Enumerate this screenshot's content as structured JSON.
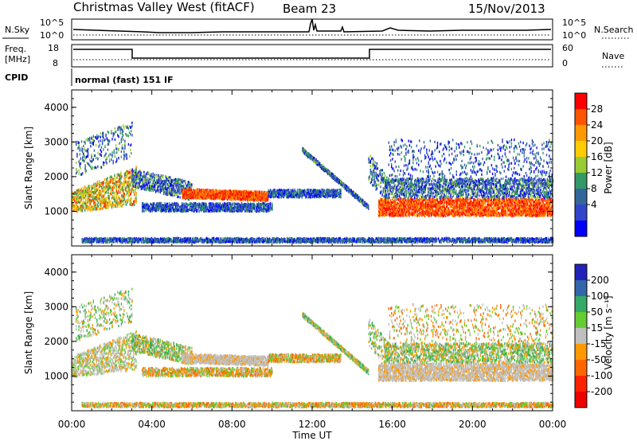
{
  "header": {
    "station": "Christmas Valley West (fitACF)",
    "beam": "Beam 23",
    "date": "15/Nov/2013"
  },
  "noise_panel": {
    "left_label": "N.Sky",
    "right_label": "N.Search",
    "left_ticks": [
      "10^5",
      "10^0"
    ],
    "right_ticks": [
      "10^5",
      "10^0"
    ]
  },
  "freq_panel": {
    "left_label_1": "Freq.",
    "left_label_2": "[MHz]",
    "right_label": "Nave",
    "left_ticks": [
      "18",
      "8"
    ],
    "right_ticks": [
      "60",
      "0"
    ]
  },
  "cpid": {
    "label": "CPID",
    "value": "normal (fast) 151 IF"
  },
  "chart_data": [
    {
      "type": "heatmap",
      "ylabel": "Slant Range [km]",
      "y_ticks": [
        "1000",
        "2000",
        "3000",
        "4000"
      ],
      "x_ticks": [
        "00:00",
        "04:00",
        "08:00",
        "12:00",
        "16:00",
        "20:00",
        "00:00"
      ],
      "colorbar_label": "Power [dB]",
      "colorbar_ticks": [
        "28",
        "24",
        "20",
        "16",
        "12",
        "8",
        "4"
      ],
      "colorbar_colors": [
        "#ff0000",
        "#ff5500",
        "#ff9900",
        "#ffcc00",
        "#99cc33",
        "#339966",
        "#336699",
        "#3344cc",
        "#0000ff"
      ]
    },
    {
      "type": "heatmap",
      "xlabel": "Time UT",
      "ylabel": "Slant Range [km]",
      "y_ticks": [
        "1000",
        "2000",
        "3000",
        "4000"
      ],
      "x_ticks": [
        "00:00",
        "04:00",
        "08:00",
        "12:00",
        "16:00",
        "20:00",
        "00:00"
      ],
      "colorbar_label": "Velocity [m s⁻¹]",
      "colorbar_ticks": [
        "200",
        "100",
        "50",
        "15",
        "-15",
        "-50",
        "-100",
        "-200"
      ],
      "colorbar_colors": [
        "#2222bb",
        "#3366aa",
        "#33aa66",
        "#66cc33",
        "#c0c0c0",
        "#ff9900",
        "#ff6600",
        "#ff2200",
        "#ee0000"
      ]
    }
  ]
}
